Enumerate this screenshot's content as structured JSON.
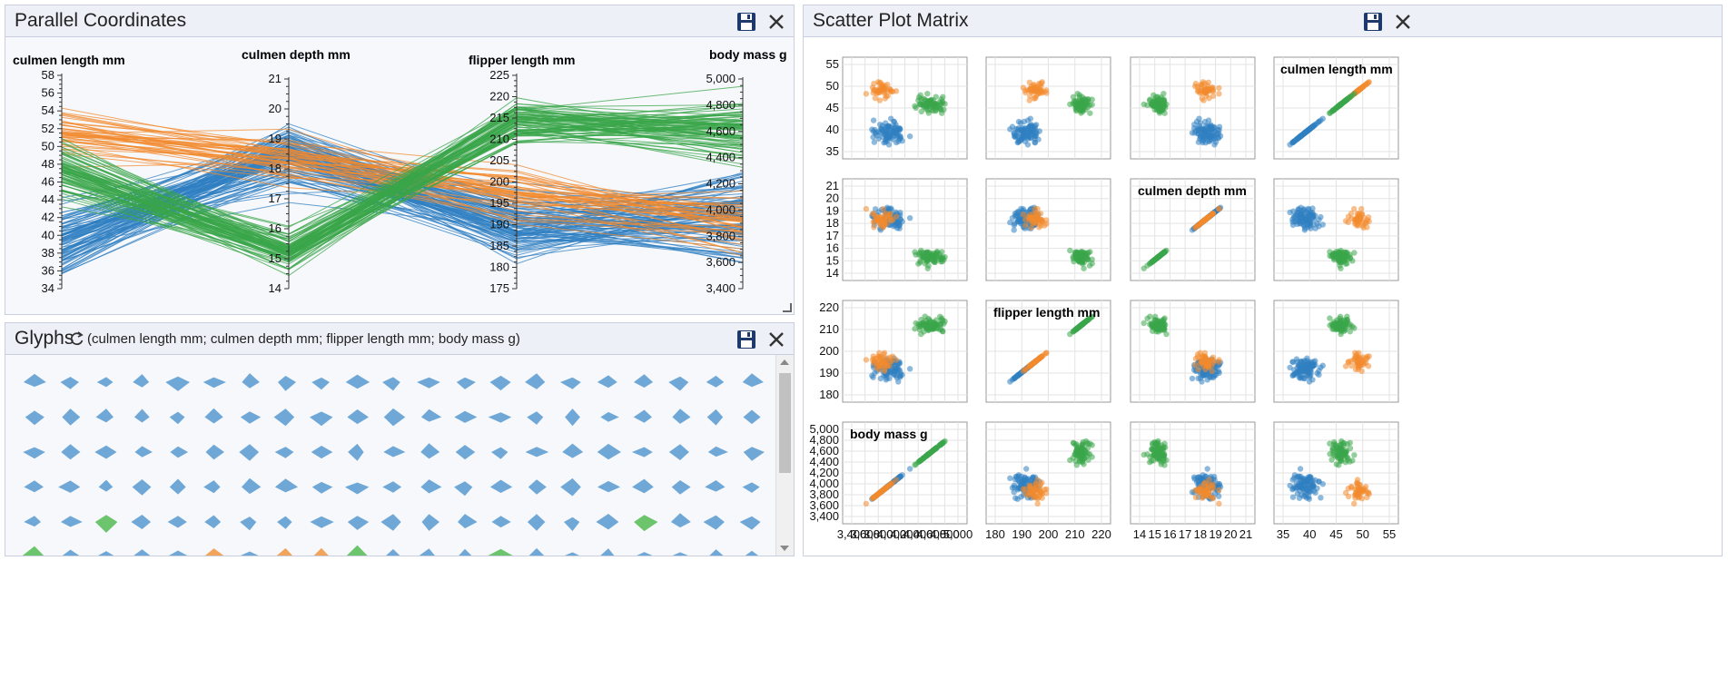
{
  "colors": {
    "blue": "#2f7fc1",
    "orange": "#f28a2e",
    "green": "#3aa64a",
    "glyph_blue": "#6fa8d6",
    "glyph_orange": "#f2a55a",
    "glyph_green": "#6cc46c"
  },
  "parallel": {
    "title": "Parallel Coordinates",
    "axes": [
      {
        "label": "culmen length mm",
        "ticks": [
          "58",
          "56",
          "54",
          "52",
          "50",
          "48",
          "46",
          "44",
          "42",
          "40",
          "38",
          "36",
          "34"
        ]
      },
      {
        "label": "culmen depth mm",
        "ticks": [
          "21",
          "20",
          "19",
          "18",
          "17",
          "16",
          "15",
          "14"
        ]
      },
      {
        "label": "flipper length mm",
        "ticks": [
          "225",
          "220",
          "215",
          "210",
          "205",
          "200",
          "195",
          "190",
          "185",
          "180",
          "175"
        ]
      },
      {
        "label": "body mass g",
        "ticks": [
          "5,000",
          "4,800",
          "4,600",
          "4,400",
          "4,200",
          "4,000",
          "3,800",
          "3,600",
          "3,400"
        ]
      }
    ]
  },
  "glyphs": {
    "title": "Glyphs",
    "subtitle": "(culmen length mm; culmen depth mm; flipper length mm; body mass g)"
  },
  "splom": {
    "title": "Scatter Plot Matrix",
    "labels": [
      "culmen length mm",
      "culmen depth mm",
      "flipper length mm",
      "body mass g"
    ],
    "row_ticks": [
      [
        "55",
        "50",
        "45",
        "40",
        "35"
      ],
      [
        "21",
        "20",
        "19",
        "18",
        "17",
        "16",
        "15",
        "14"
      ],
      [
        "220",
        "210",
        "200",
        "190",
        "180"
      ],
      [
        "5,000",
        "4,800",
        "4,600",
        "4,400",
        "4,200",
        "4,000",
        "3,800",
        "3,600",
        "3,400"
      ]
    ],
    "col_ticks": [
      [
        "3,400",
        "3,600",
        "3,800",
        "4,000",
        "4,200",
        "4,400",
        "4,600",
        "4,800",
        "5,000"
      ],
      [
        "180",
        "190",
        "200",
        "210",
        "220"
      ],
      [
        "14",
        "15",
        "16",
        "17",
        "18",
        "19",
        "20",
        "21"
      ],
      [
        "35",
        "40",
        "45",
        "50",
        "55"
      ]
    ]
  }
}
